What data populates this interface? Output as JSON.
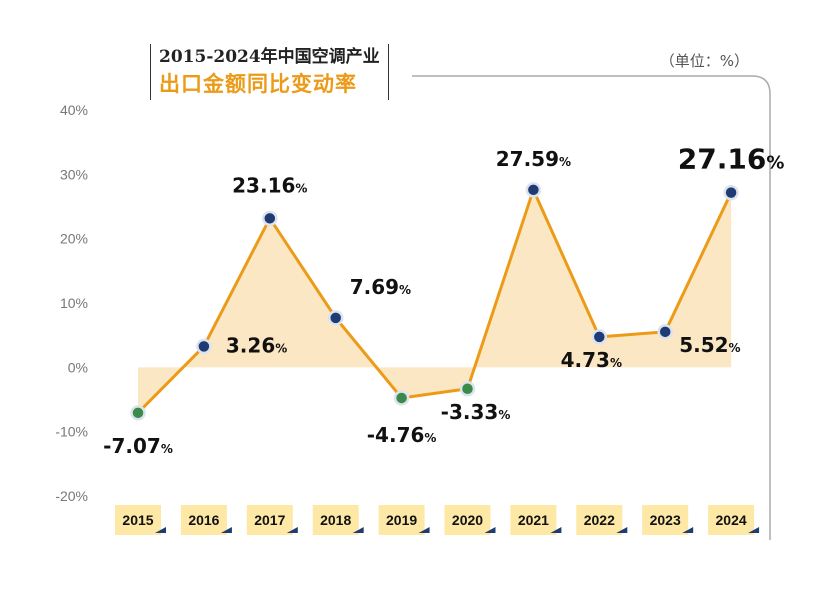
{
  "title_line1": "2015-2024年中国空调产业",
  "title_line2": "出口金额同比变动率",
  "unit": "（单位：%）",
  "colors": {
    "line": "#ec9b18",
    "area": "#fce7c4",
    "point_pos": "#1f3b73",
    "point_neg": "#3a8a4a",
    "highlight": "#ec9b18",
    "xbox": "#fde8a6"
  },
  "chart_data": {
    "type": "line",
    "categories": [
      "2015",
      "2016",
      "2017",
      "2018",
      "2019",
      "2020",
      "2021",
      "2022",
      "2023",
      "2024"
    ],
    "values": [
      -7.07,
      3.26,
      23.16,
      7.69,
      -4.76,
      -3.33,
      27.59,
      4.73,
      5.52,
      27.16
    ],
    "labels": [
      "-7.07",
      "3.26",
      "23.16",
      "7.69",
      "-4.76",
      "-3.33",
      "27.59",
      "4.73",
      "5.52",
      "27.16"
    ],
    "label_suffix": "%",
    "ylim": [
      -20,
      40
    ],
    "yticks": [
      "-20%",
      "-10%",
      "0%",
      "10%",
      "20%",
      "30%",
      "40%"
    ],
    "grid": false,
    "highlight_last": true
  }
}
